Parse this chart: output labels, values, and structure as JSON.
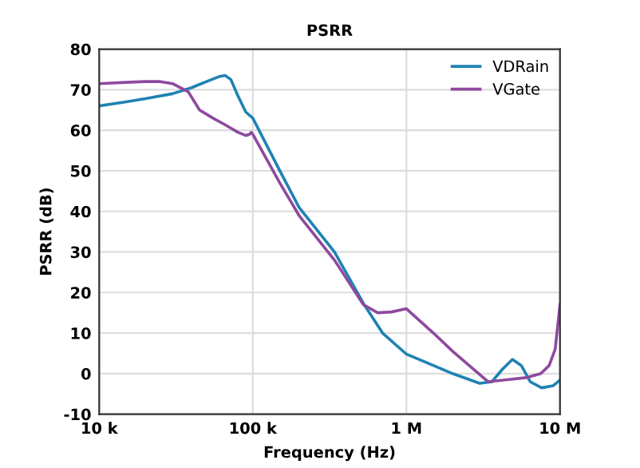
{
  "chart_data": {
    "type": "line",
    "title": "PSRR",
    "xlabel": "Frequency (Hz)",
    "ylabel": "PSRR (dB)",
    "log": "x",
    "xlim": [
      10000,
      10000000
    ],
    "ylim": [
      -10,
      80
    ],
    "xticks": [
      {
        "value": 10000,
        "label": "10 k"
      },
      {
        "value": 100000,
        "label": "100 k"
      },
      {
        "value": 1000000,
        "label": "1 M"
      },
      {
        "value": 10000000,
        "label": "10 M"
      }
    ],
    "yticks": [
      -10,
      0,
      10,
      20,
      30,
      40,
      50,
      60,
      70,
      80
    ],
    "grid": true,
    "legend": "top right",
    "line_style": "solid",
    "marker": "none",
    "series": [
      {
        "name": "VDRain",
        "color": "#1f82b4",
        "x": [
          10000,
          15000,
          20000,
          30000,
          40000,
          50000,
          60000,
          66000,
          72000,
          80000,
          90000,
          100000,
          150000,
          200000,
          340000,
          525000,
          700000,
          1000000,
          1500000,
          2000000,
          3000000,
          3600000,
          4200000,
          4900000,
          5600000,
          6400000,
          7600000,
          9000000,
          10000000
        ],
        "values": [
          66,
          67,
          67.8,
          69,
          70.5,
          72,
          73.2,
          73.5,
          72.5,
          68.5,
          64.5,
          63,
          50,
          41,
          30,
          17.3,
          10,
          4.8,
          2,
          0,
          -2.4,
          -2,
          1,
          3.5,
          2,
          -2,
          -3.5,
          -3,
          -1.6
        ]
      },
      {
        "name": "VGate",
        "color": "#8e4a9e",
        "x": [
          10000,
          15000,
          20000,
          25000,
          30000,
          38000,
          45000,
          55000,
          65000,
          80000,
          90000,
          95000,
          98000,
          100000,
          150000,
          200000,
          340000,
          525000,
          650000,
          800000,
          1000000,
          1500000,
          2000000,
          3400000,
          4500000,
          6000000,
          7500000,
          8500000,
          9300000,
          10000000
        ],
        "values": [
          71.5,
          71.8,
          72,
          72,
          71.5,
          69.5,
          65,
          63,
          61.5,
          59.5,
          58.7,
          59,
          59.5,
          59,
          47,
          39,
          28,
          17,
          15,
          15.2,
          16,
          10,
          5.5,
          -2,
          -1.5,
          -1,
          0,
          2,
          6,
          17
        ]
      }
    ]
  }
}
